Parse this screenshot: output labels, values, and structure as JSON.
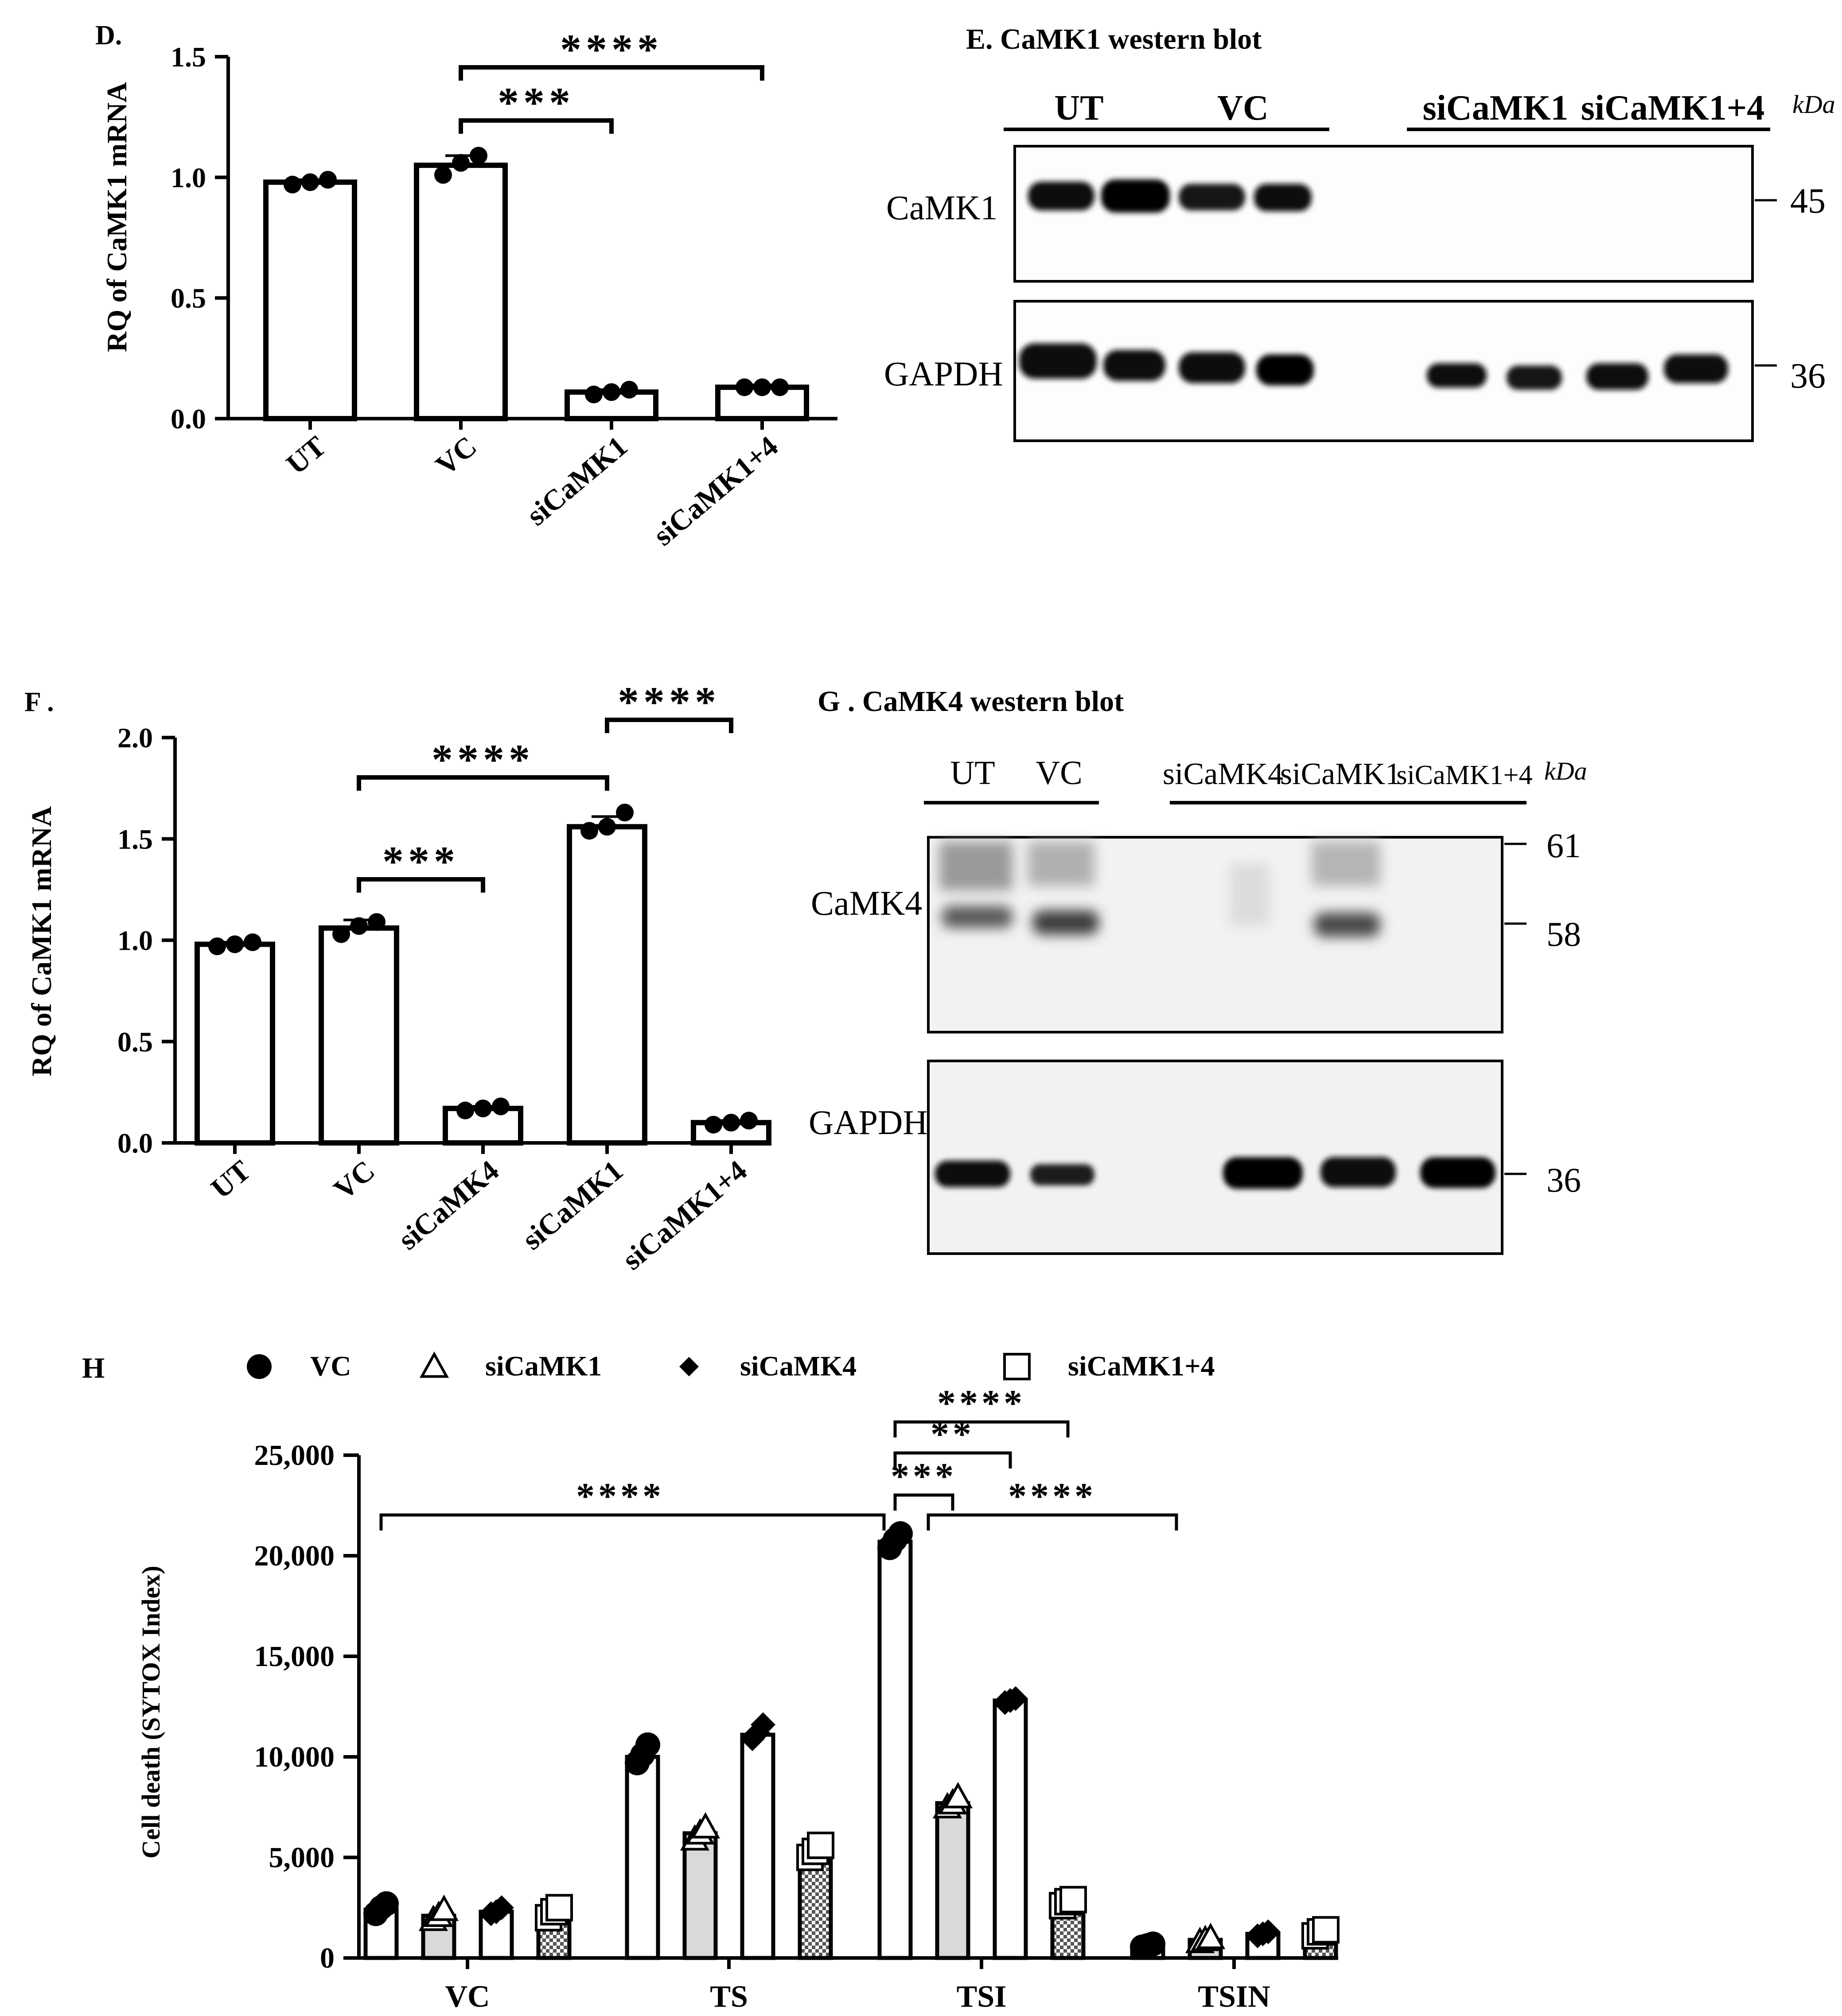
{
  "panels": {
    "D": {
      "panel_label": "D.",
      "chart_data": {
        "type": "bar",
        "categories": [
          "UT",
          "VC",
          "siCaMK1",
          "siCaMK1+4"
        ],
        "values": [
          0.98,
          1.05,
          0.11,
          0.13
        ],
        "errors": [
          0.01,
          0.04,
          0.01,
          0.01
        ],
        "points": [
          [
            0.97,
            0.98,
            0.99
          ],
          [
            1.01,
            1.06,
            1.09
          ],
          [
            0.1,
            0.11,
            0.12
          ],
          [
            0.13,
            0.13,
            0.13
          ]
        ],
        "ylabel": "RQ of CaMK1 mRNA",
        "ylim": [
          0,
          1.5
        ],
        "yticks": [
          "0.0",
          "0.5",
          "1.0",
          "1.5"
        ],
        "significance": [
          {
            "from": "VC",
            "to": "siCaMK1",
            "label": "***"
          },
          {
            "from": "VC",
            "to": "siCaMK1+4",
            "label": "****"
          }
        ]
      }
    },
    "E": {
      "title": "E. CaMK1 western blot",
      "groups": [
        {
          "label": "UT"
        },
        {
          "label": "VC"
        },
        {
          "label": "siCaMK1"
        },
        {
          "label": "siCaMK1+4"
        }
      ],
      "kda_label": "kDa",
      "rows": [
        {
          "label": "CaMK1",
          "marker": "45"
        },
        {
          "label": "GAPDH",
          "marker": "36"
        }
      ]
    },
    "F": {
      "panel_label": "F .",
      "chart_data": {
        "type": "bar",
        "categories": [
          "UT",
          "VC",
          "siCaMK4",
          "siCaMK1",
          "siCaMK1+4"
        ],
        "values": [
          0.98,
          1.06,
          0.17,
          1.56,
          0.1
        ],
        "errors": [
          0.01,
          0.04,
          0.01,
          0.05,
          0.01
        ],
        "points": [
          [
            0.97,
            0.98,
            0.99
          ],
          [
            1.03,
            1.07,
            1.09
          ],
          [
            0.16,
            0.17,
            0.18
          ],
          [
            1.54,
            1.56,
            1.63
          ],
          [
            0.09,
            0.1,
            0.11
          ]
        ],
        "ylabel": "RQ of CaMK1 mRNA",
        "ylim": [
          0,
          2.0
        ],
        "yticks": [
          "0.0",
          "0.5",
          "1.0",
          "1.5",
          "2.0"
        ],
        "significance": [
          {
            "from": "VC",
            "to": "siCaMK4",
            "label": "***"
          },
          {
            "from": "VC",
            "to": "siCaMK1",
            "label": "****"
          },
          {
            "from": "siCaMK1",
            "to": "siCaMK1+4",
            "label": "****"
          }
        ]
      }
    },
    "G": {
      "title": "G . CaMK4 western blot",
      "groups": [
        {
          "label": "UT"
        },
        {
          "label": "VC"
        },
        {
          "label": "siCaMK4"
        },
        {
          "label": "siCaMK1"
        },
        {
          "label": "siCaMK1+4"
        }
      ],
      "kda_label": "kDa",
      "rows": [
        {
          "label": "CaMK4",
          "markers": [
            "61",
            "58"
          ]
        },
        {
          "label": "GAPDH",
          "marker": "36"
        }
      ]
    },
    "H": {
      "panel_label": "H",
      "chart_data": {
        "type": "bar",
        "categories": [
          "VC",
          "TS",
          "TSI",
          "TSIN"
        ],
        "series": [
          {
            "name": "VC",
            "values": [
              2400,
              10000,
              20700,
              600
            ],
            "points": [
              [
                2200,
                2500,
                2700
              ],
              [
                9700,
                10100,
                10600
              ],
              [
                20400,
                20800,
                21100
              ],
              [
                550,
                620,
                700
              ]
            ]
          },
          {
            "name": "siCaMK1",
            "values": [
              2100,
              6200,
              7700,
              900
            ],
            "points": [
              [
                1900,
                2100,
                2400
              ],
              [
                5900,
                6200,
                6500
              ],
              [
                7500,
                7700,
                8000
              ],
              [
                800,
                900,
                1000
              ]
            ]
          },
          {
            "name": "siCaMK4",
            "values": [
              2300,
              11100,
              12800,
              1200
            ],
            "points": [
              [
                2200,
                2300,
                2500
              ],
              [
                10900,
                11200,
                11600
              ],
              [
                12700,
                12800,
                12900
              ],
              [
                1100,
                1200,
                1300
              ]
            ]
          },
          {
            "name": "siCaMK1+4",
            "values": [
              2300,
              5300,
              2800,
              1300
            ],
            "points": [
              [
                2000,
                2300,
                2500
              ],
              [
                5000,
                5300,
                5600
              ],
              [
                2600,
                2800,
                2900
              ],
              [
                1100,
                1300,
                1400
              ]
            ]
          }
        ],
        "series_colors": [
          "#ffffff",
          "#d9d9d9",
          "#ffffff",
          "checker"
        ],
        "markers": [
          "circle",
          "triangle",
          "diamond",
          "square"
        ],
        "ylabel": "Cell death (SYTOX Index)",
        "ylim": [
          0,
          25000
        ],
        "yticks": [
          "0",
          "5,000",
          "10,000",
          "15,000",
          "20,000",
          "25,000"
        ],
        "legend": "top",
        "significance": [
          {
            "label": "****",
            "desc": "VC-VC vs TSI-VC"
          },
          {
            "label": "***",
            "desc": "TSI-VC vs TSI-siCaMK1"
          },
          {
            "label": "**",
            "desc": "TSI-VC vs TSI-siCaMK4"
          },
          {
            "label": "****",
            "desc": "TSI-VC vs TSI-siCaMK1+4"
          },
          {
            "label": "****",
            "desc": "TSI-VC vs TSIN"
          }
        ]
      }
    }
  }
}
